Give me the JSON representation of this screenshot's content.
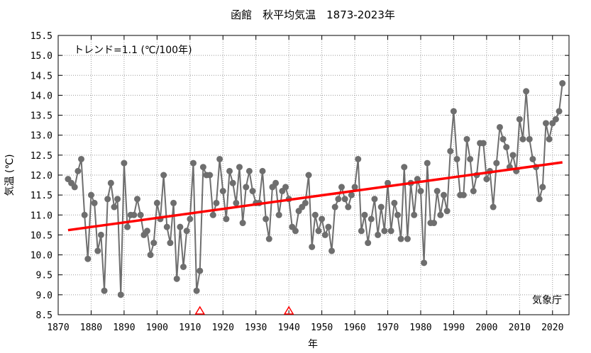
{
  "chart_data": {
    "type": "line",
    "title": "函館　秋平均気温　1873-2023年",
    "xlabel": "年",
    "ylabel": "気温 (℃)",
    "xlim": [
      1870,
      2025
    ],
    "ylim": [
      8.5,
      15.5
    ],
    "xticks": [
      1870,
      1880,
      1890,
      1900,
      1910,
      1920,
      1930,
      1940,
      1950,
      1960,
      1970,
      1980,
      1990,
      2000,
      2010,
      2020
    ],
    "yticks": [
      8.5,
      9.0,
      9.5,
      10.0,
      10.5,
      11.0,
      11.5,
      12.0,
      12.5,
      13.0,
      13.5,
      14.0,
      14.5,
      15.0,
      15.5
    ],
    "grid": true,
    "trend_text": "トレンド=1.1 (℃/100年)",
    "source_text": "気象庁",
    "colors": {
      "series": "#6e6e6e",
      "trend": "#ff0000",
      "marker": "#ff0000",
      "grid": "#999999"
    },
    "series": [
      {
        "x": [
          1873,
          1874,
          1875,
          1876,
          1877,
          1878,
          1879,
          1880,
          1881,
          1882,
          1883,
          1884,
          1885,
          1886,
          1887,
          1888,
          1889,
          1890,
          1891,
          1892,
          1893,
          1894,
          1895,
          1896,
          1897,
          1898,
          1899,
          1900,
          1901,
          1902,
          1903,
          1904,
          1905,
          1906,
          1907,
          1908,
          1909,
          1910,
          1911,
          1912,
          1913,
          1914,
          1915,
          1916,
          1917,
          1918,
          1919,
          1920,
          1921,
          1922,
          1923,
          1924,
          1925,
          1926,
          1927,
          1928,
          1929,
          1930,
          1931,
          1932,
          1933,
          1934,
          1935,
          1936,
          1937,
          1938,
          1939,
          1940,
          1941,
          1942,
          1943,
          1944,
          1945,
          1946,
          1947,
          1948,
          1949,
          1950,
          1951,
          1952,
          1953,
          1954,
          1955,
          1956,
          1957,
          1958,
          1959,
          1960,
          1961,
          1962,
          1963,
          1964,
          1965,
          1966,
          1967,
          1968,
          1969,
          1970,
          1971,
          1972,
          1973,
          1974,
          1975,
          1976,
          1977,
          1978,
          1979,
          1980,
          1981,
          1982,
          1983,
          1984,
          1985,
          1986,
          1987,
          1988,
          1989,
          1990,
          1991,
          1992,
          1993,
          1994,
          1995,
          1996,
          1997,
          1998,
          1999,
          2000,
          2001,
          2002,
          2003,
          2004,
          2005,
          2006,
          2007,
          2008,
          2009,
          2010,
          2011,
          2012,
          2013,
          2014,
          2015,
          2016,
          2017,
          2018,
          2019,
          2020,
          2021,
          2022,
          2023
        ],
        "y": [
          11.9,
          11.8,
          11.7,
          12.1,
          12.4,
          11.0,
          9.9,
          11.5,
          11.3,
          10.1,
          10.5,
          9.1,
          11.4,
          11.8,
          11.2,
          11.4,
          9.0,
          12.3,
          10.7,
          11.0,
          11.0,
          11.4,
          11.0,
          10.5,
          10.6,
          10.0,
          10.3,
          11.3,
          10.9,
          12.0,
          10.7,
          10.3,
          11.3,
          9.4,
          10.7,
          9.7,
          10.6,
          10.9,
          12.3,
          9.1,
          9.6,
          12.2,
          12.0,
          12.0,
          11.0,
          11.3,
          12.4,
          11.6,
          10.9,
          12.1,
          11.8,
          11.3,
          12.2,
          10.8,
          11.7,
          12.1,
          11.6,
          11.3,
          11.3,
          12.1,
          10.9,
          10.4,
          11.7,
          11.8,
          11.0,
          11.6,
          11.7,
          11.4,
          10.7,
          10.6,
          11.1,
          11.2,
          11.3,
          12.0,
          10.2,
          11.0,
          10.6,
          10.9,
          10.5,
          10.7,
          10.1,
          11.2,
          11.4,
          11.7,
          11.4,
          11.2,
          11.5,
          11.7,
          12.4,
          10.6,
          11.0,
          10.3,
          10.9,
          11.4,
          10.5,
          11.2,
          10.6,
          11.8,
          10.6,
          11.3,
          11.0,
          10.4,
          12.2,
          10.4,
          11.8,
          11.0,
          11.9,
          11.6,
          9.8,
          12.3,
          10.8,
          10.8,
          11.6,
          11.0,
          11.5,
          11.1,
          12.6,
          13.6,
          12.4,
          11.5,
          11.5,
          12.9,
          12.4,
          11.6,
          12.0,
          12.8,
          12.8,
          11.9,
          12.1,
          11.2,
          12.3,
          13.2,
          12.9,
          12.7,
          12.2,
          12.5,
          12.1,
          13.4,
          12.9,
          14.1,
          12.9,
          12.4,
          12.2,
          11.4,
          11.7,
          13.3,
          12.9,
          13.3,
          13.4,
          13.6,
          14.3
        ]
      }
    ],
    "trend": {
      "x": [
        1873,
        2023
      ],
      "y": [
        10.62,
        12.32
      ]
    },
    "station_change_markers": [
      1913,
      1940
    ]
  }
}
